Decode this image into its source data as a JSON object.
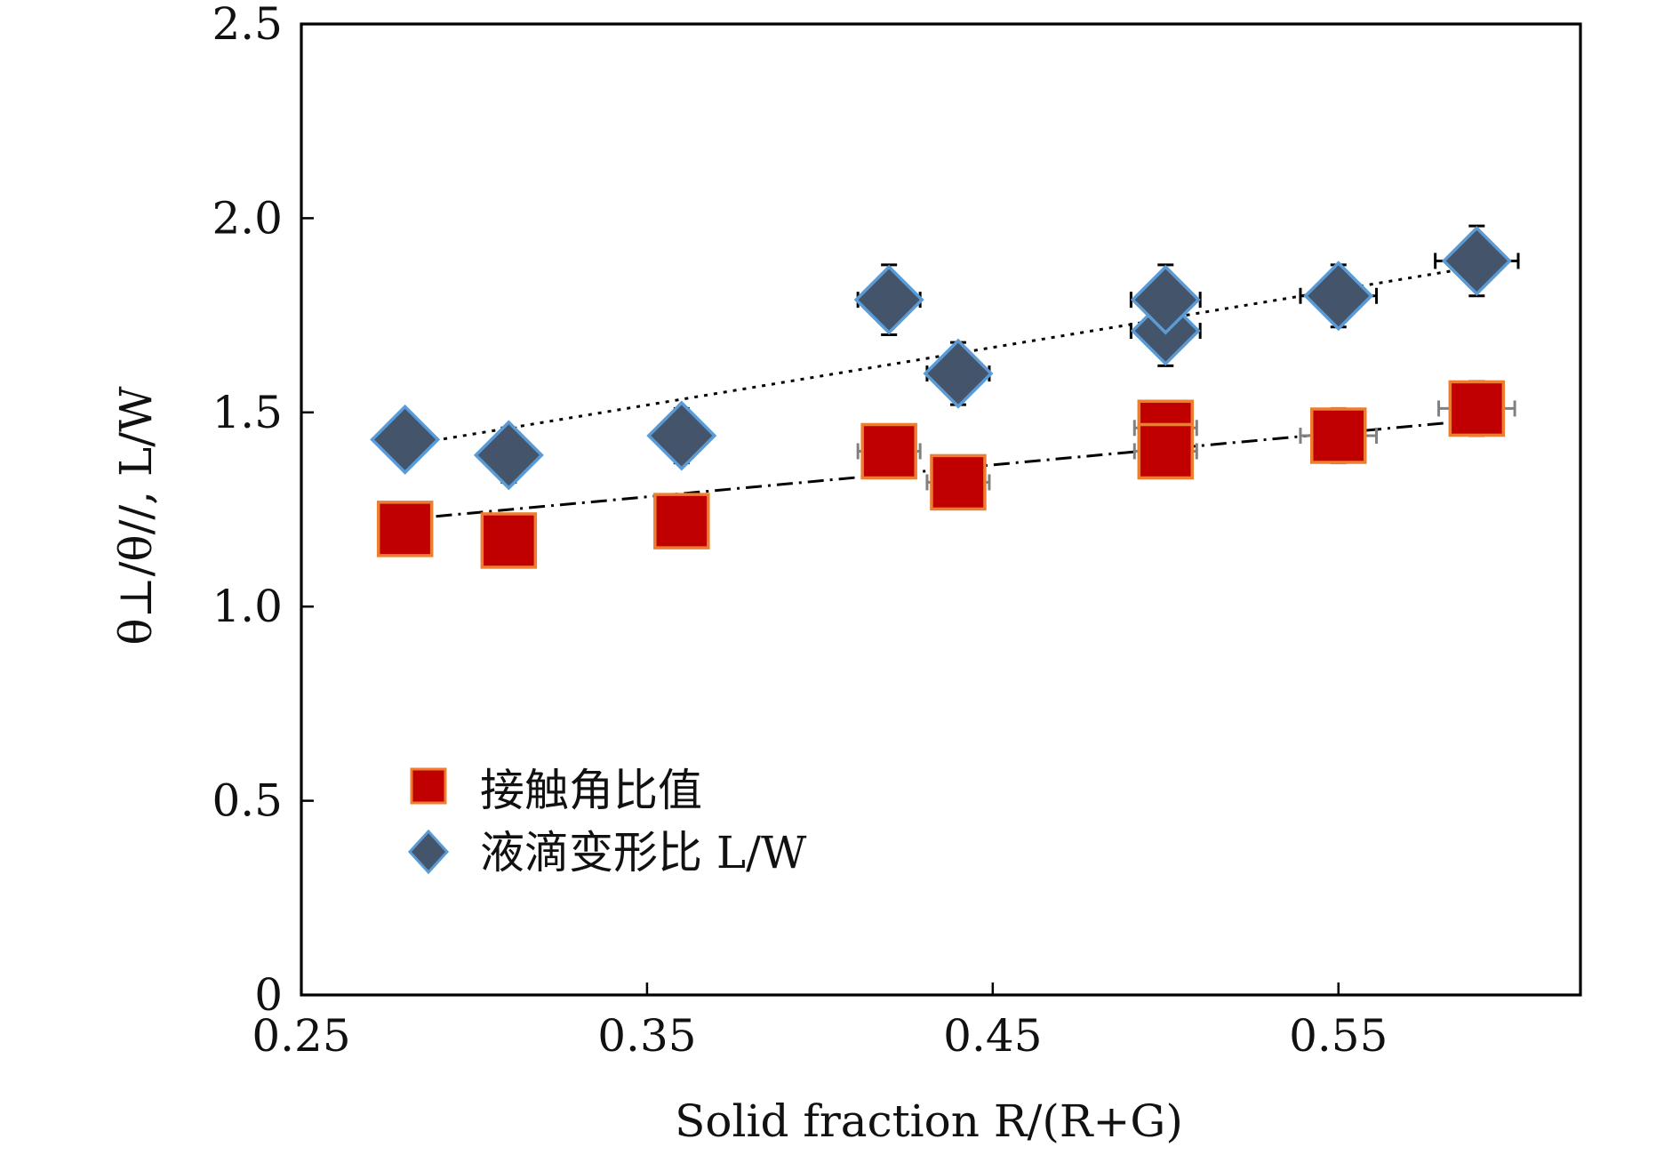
{
  "chart_data": {
    "type": "scatter",
    "title": "",
    "xlabel": "Solid fraction R/(R+G)",
    "ylabel": "θ⊥/θ//, L/W",
    "xlim": [
      0.25,
      0.62
    ],
    "ylim": [
      0,
      2.5
    ],
    "x_ticks": [
      "0.25",
      "0.35",
      "0.45",
      "0.55"
    ],
    "y_ticks": [
      "0",
      "0.5",
      "1.0",
      "1.5",
      "2.0",
      "2.5"
    ],
    "grid": false,
    "legend_position": "lower-left",
    "series": [
      {
        "name": "接触角比值",
        "marker": "square",
        "fill": "#c00000",
        "stroke": "#ed7d31",
        "errorbar_color": "#808080",
        "points": [
          {
            "x": 0.28,
            "y": 1.2
          },
          {
            "x": 0.31,
            "y": 1.17
          },
          {
            "x": 0.36,
            "y": 1.22
          },
          {
            "x": 0.42,
            "y": 1.4,
            "xerr": 0.009,
            "yerr": 0.06
          },
          {
            "x": 0.44,
            "y": 1.32,
            "xerr": 0.009,
            "yerr": 0.04
          },
          {
            "x": 0.5,
            "y": 1.46,
            "xerr": 0.009,
            "yerr": 0.06
          },
          {
            "x": 0.5,
            "y": 1.4,
            "xerr": 0.009,
            "yerr": 0.04
          },
          {
            "x": 0.55,
            "y": 1.44,
            "xerr": 0.011,
            "yerr": 0.07
          },
          {
            "x": 0.59,
            "y": 1.51,
            "xerr": 0.011,
            "yerr": 0.07
          }
        ],
        "fit": {
          "style": "dash-dot",
          "color": "#000000",
          "x": [
            0.28,
            0.59
          ],
          "y": [
            1.225,
            1.48
          ]
        }
      },
      {
        "name": "液滴变形比 L/W",
        "marker": "diamond",
        "fill": "#44546a",
        "stroke": "#5b9bd5",
        "errorbar_color": "#000000",
        "points": [
          {
            "x": 0.28,
            "y": 1.43,
            "yerr": 0.06
          },
          {
            "x": 0.31,
            "y": 1.39,
            "yerr": 0.07
          },
          {
            "x": 0.36,
            "y": 1.44,
            "yerr": 0.07
          },
          {
            "x": 0.42,
            "y": 1.79,
            "xerr": 0.009,
            "yerr": 0.09
          },
          {
            "x": 0.44,
            "y": 1.6,
            "xerr": 0.009,
            "yerr": 0.08
          },
          {
            "x": 0.5,
            "y": 1.71,
            "xerr": 0.01,
            "yerr": 0.09
          },
          {
            "x": 0.5,
            "y": 1.79,
            "xerr": 0.01,
            "yerr": 0.09
          },
          {
            "x": 0.55,
            "y": 1.8,
            "xerr": 0.011,
            "yerr": 0.08
          },
          {
            "x": 0.59,
            "y": 1.89,
            "xerr": 0.012,
            "yerr": 0.09
          }
        ],
        "fit": {
          "style": "dotted",
          "color": "#000000",
          "x": [
            0.28,
            0.59
          ],
          "y": [
            1.415,
            1.875
          ]
        }
      }
    ]
  }
}
